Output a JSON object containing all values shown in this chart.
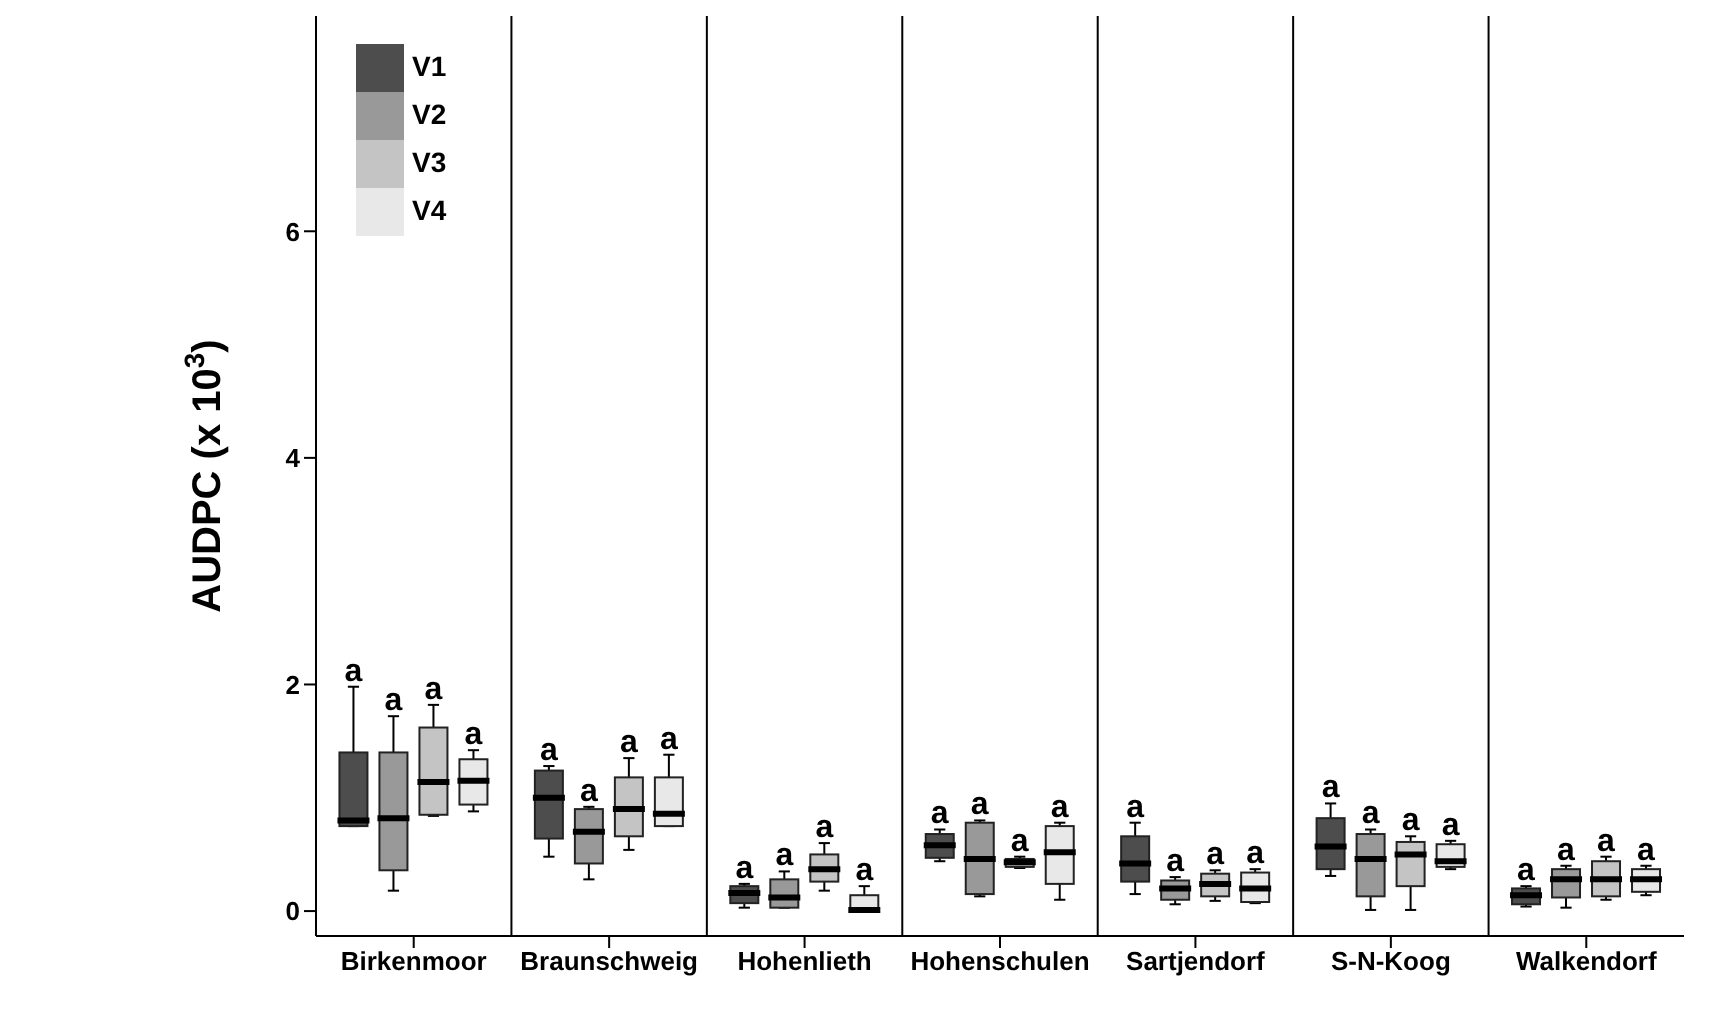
{
  "chart_data": {
    "type": "box",
    "ylabel": "AUDPC (x 10$^{3}$)",
    "categories": [
      "Birkenmoor",
      "Braunschweig",
      "Hohenlieth",
      "Hohenschulen",
      "Sartjendorf",
      "S-N-Koog",
      "Walkendorf"
    ],
    "ylim": [
      -0.22,
      7.9
    ],
    "yticks": [
      0,
      2,
      4,
      6
    ],
    "legend": "top left",
    "series": [
      {
        "name": "V1",
        "color": "#4d4d4d",
        "value_labels": [
          "a",
          "a",
          "a",
          "a",
          "a",
          "a",
          "a"
        ],
        "boxes": [
          {
            "low": 0.75,
            "q1": 0.75,
            "median": 0.8,
            "q3": 1.4,
            "high": 1.98
          },
          {
            "low": 0.48,
            "q1": 0.64,
            "median": 1.0,
            "q3": 1.24,
            "high": 1.28
          },
          {
            "low": 0.03,
            "q1": 0.07,
            "median": 0.16,
            "q3": 0.22,
            "high": 0.24
          },
          {
            "low": 0.44,
            "q1": 0.47,
            "median": 0.58,
            "q3": 0.68,
            "high": 0.72
          },
          {
            "low": 0.15,
            "q1": 0.26,
            "median": 0.42,
            "q3": 0.66,
            "high": 0.78
          },
          {
            "low": 0.31,
            "q1": 0.37,
            "median": 0.57,
            "q3": 0.82,
            "high": 0.95
          },
          {
            "low": 0.04,
            "q1": 0.06,
            "median": 0.14,
            "q3": 0.2,
            "high": 0.22
          }
        ]
      },
      {
        "name": "V2",
        "color": "#999999",
        "value_labels": [
          "a",
          "a",
          "a",
          "a",
          "a",
          "a",
          "a"
        ],
        "boxes": [
          {
            "low": 0.18,
            "q1": 0.36,
            "median": 0.82,
            "q3": 1.4,
            "high": 1.72
          },
          {
            "low": 0.28,
            "q1": 0.42,
            "median": 0.7,
            "q3": 0.9,
            "high": 0.92
          },
          {
            "low": 0.03,
            "q1": 0.03,
            "median": 0.12,
            "q3": 0.28,
            "high": 0.35
          },
          {
            "low": 0.13,
            "q1": 0.15,
            "median": 0.46,
            "q3": 0.78,
            "high": 0.8
          },
          {
            "low": 0.06,
            "q1": 0.1,
            "median": 0.2,
            "q3": 0.27,
            "high": 0.3
          },
          {
            "low": 0.01,
            "q1": 0.13,
            "median": 0.46,
            "q3": 0.68,
            "high": 0.72
          },
          {
            "low": 0.03,
            "q1": 0.12,
            "median": 0.28,
            "q3": 0.37,
            "high": 0.4
          }
        ]
      },
      {
        "name": "V3",
        "color": "#c4c4c4",
        "value_labels": [
          "a",
          "a",
          "a",
          "a",
          "a",
          "a",
          "a"
        ],
        "boxes": [
          {
            "low": 0.84,
            "q1": 0.85,
            "median": 1.14,
            "q3": 1.62,
            "high": 1.82
          },
          {
            "low": 0.54,
            "q1": 0.66,
            "median": 0.9,
            "q3": 1.18,
            "high": 1.35
          },
          {
            "low": 0.18,
            "q1": 0.26,
            "median": 0.37,
            "q3": 0.5,
            "high": 0.6
          },
          {
            "low": 0.38,
            "q1": 0.39,
            "median": 0.43,
            "q3": 0.46,
            "high": 0.48
          },
          {
            "low": 0.09,
            "q1": 0.13,
            "median": 0.24,
            "q3": 0.33,
            "high": 0.36
          },
          {
            "low": 0.01,
            "q1": 0.22,
            "median": 0.5,
            "q3": 0.61,
            "high": 0.66
          },
          {
            "low": 0.1,
            "q1": 0.13,
            "median": 0.28,
            "q3": 0.44,
            "high": 0.48
          }
        ]
      },
      {
        "name": "V4",
        "color": "#e8e8e8",
        "value_labels": [
          "a",
          "a",
          "a",
          "a",
          "a",
          "a",
          "a"
        ],
        "boxes": [
          {
            "low": 0.88,
            "q1": 0.94,
            "median": 1.15,
            "q3": 1.34,
            "high": 1.42
          },
          {
            "low": 0.75,
            "q1": 0.75,
            "median": 0.86,
            "q3": 1.18,
            "high": 1.38
          },
          {
            "low": 0.0,
            "q1": 0.01,
            "median": 0.01,
            "q3": 0.14,
            "high": 0.22
          },
          {
            "low": 0.1,
            "q1": 0.24,
            "median": 0.52,
            "q3": 0.75,
            "high": 0.78
          },
          {
            "low": 0.07,
            "q1": 0.08,
            "median": 0.2,
            "q3": 0.34,
            "high": 0.37
          },
          {
            "low": 0.37,
            "q1": 0.39,
            "median": 0.44,
            "q3": 0.59,
            "high": 0.62
          },
          {
            "low": 0.14,
            "q1": 0.17,
            "median": 0.28,
            "q3": 0.37,
            "high": 0.4
          }
        ]
      }
    ]
  }
}
